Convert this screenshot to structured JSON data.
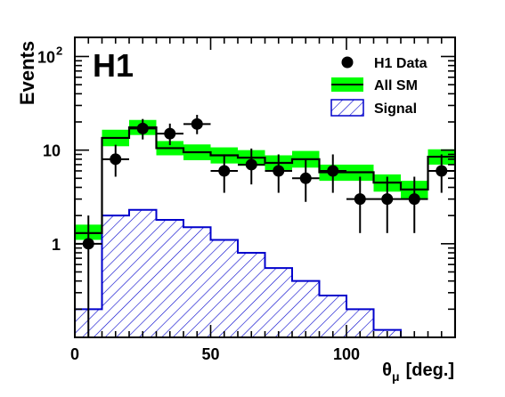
{
  "chart_data": {
    "type": "histogram",
    "experiment_label": "H1",
    "xlabel_symbol": "θ",
    "xlabel_subscript": "μ",
    "xlabel_unit": "[deg.]",
    "ylabel": "Events",
    "xlim": [
      0,
      140
    ],
    "ylim": [
      0.1,
      160
    ],
    "yscale": "log",
    "xticks": [
      0,
      50,
      100
    ],
    "yticks": [
      {
        "value": 1,
        "label": "1"
      },
      {
        "value": 10,
        "label": "10"
      },
      {
        "value": 100,
        "label": "10",
        "sup": "2"
      }
    ],
    "bin_edges": [
      0,
      10,
      20,
      30,
      40,
      50,
      60,
      70,
      80,
      90,
      100,
      110,
      120,
      130,
      140
    ],
    "sm_values": [
      1.3,
      13.5,
      17.5,
      10.5,
      9.5,
      8.8,
      8.3,
      7.3,
      8.0,
      5.8,
      5.8,
      4.5,
      3.8,
      8.5
    ],
    "sm_band_low": [
      1.1,
      11.0,
      14.5,
      8.8,
      7.8,
      7.2,
      6.8,
      6.0,
      6.5,
      4.7,
      4.7,
      3.6,
      3.0,
      7.0
    ],
    "sm_band_high": [
      1.6,
      16.5,
      21.0,
      12.5,
      11.5,
      10.7,
      10.0,
      8.8,
      9.8,
      7.0,
      7.0,
      5.5,
      4.7,
      10.2
    ],
    "signal_values": [
      0.2,
      2.0,
      2.3,
      1.8,
      1.5,
      1.1,
      0.8,
      0.55,
      0.4,
      0.28,
      0.2,
      0.12,
      0.09,
      0.0
    ],
    "data_points": [
      {
        "x": 5,
        "y": 1,
        "ylo": 0.1,
        "yhi": 2.0
      },
      {
        "x": 15,
        "y": 8,
        "ylo": 5.2,
        "yhi": 11.4
      },
      {
        "x": 25,
        "y": 17,
        "ylo": 13,
        "yhi": 21.5
      },
      {
        "x": 35,
        "y": 15,
        "ylo": 11.3,
        "yhi": 19.2
      },
      {
        "x": 45,
        "y": 19,
        "ylo": 14.8,
        "yhi": 23.8
      },
      {
        "x": 55,
        "y": 6,
        "ylo": 3.5,
        "yhi": 9.0
      },
      {
        "x": 65,
        "y": 7,
        "ylo": 4.3,
        "yhi": 10.4
      },
      {
        "x": 75,
        "y": 6,
        "ylo": 3.5,
        "yhi": 9.0
      },
      {
        "x": 85,
        "y": 5,
        "ylo": 2.8,
        "yhi": 7.8
      },
      {
        "x": 95,
        "y": 6,
        "ylo": 3.5,
        "yhi": 9.0
      },
      {
        "x": 105,
        "y": 3,
        "ylo": 1.3,
        "yhi": 5.2
      },
      {
        "x": 115,
        "y": 3,
        "ylo": 1.3,
        "yhi": 5.2
      },
      {
        "x": 125,
        "y": 3,
        "ylo": 1.3,
        "yhi": 5.2
      },
      {
        "x": 135,
        "y": 6,
        "ylo": 3.5,
        "yhi": 9.0
      }
    ],
    "legend": [
      {
        "label": "H1 Data",
        "style": "marker"
      },
      {
        "label": "All SM",
        "style": "line-band"
      },
      {
        "label": "Signal",
        "style": "hatch"
      }
    ],
    "legend_position": "top-right",
    "colors": {
      "band": "#00ff00",
      "sm_line": "#000000",
      "signal": "#0000cc",
      "data": "#000000"
    }
  }
}
